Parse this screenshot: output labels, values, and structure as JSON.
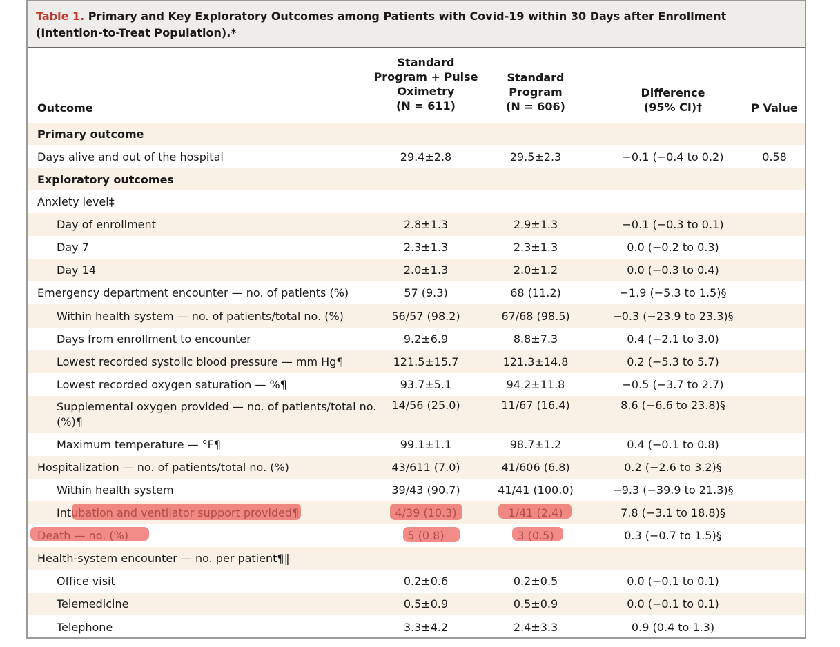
{
  "table": {
    "caption_label": "Table 1.",
    "caption_text": " Primary and Key Exploratory Outcomes among Patients with Covid-19 within 30 Days after Enrollment (Intention-to-Treat Population).*",
    "headers": {
      "outcome": "Outcome",
      "col1": [
        "Standard",
        "Program + Pulse",
        "Oximetry",
        "(N = 611)"
      ],
      "col2": [
        "Standard",
        "Program",
        "(N = 606)"
      ],
      "col3": [
        "Difference",
        "(95% CI)†"
      ],
      "col4": "P Value"
    },
    "rows": [
      {
        "label": "Primary outcome",
        "indent": false,
        "section": true,
        "c1": "",
        "c2": "",
        "c3": "",
        "c4": ""
      },
      {
        "label": "Days alive and out of the hospital",
        "indent": false,
        "section": false,
        "c1": "29.4±2.8",
        "c2": "29.5±2.3",
        "c3": "−0.1 (−0.4 to 0.2)",
        "c4": "0.58"
      },
      {
        "label": "Exploratory outcomes",
        "indent": false,
        "section": true,
        "c1": "",
        "c2": "",
        "c3": "",
        "c4": ""
      },
      {
        "label": "Anxiety level‡",
        "indent": false,
        "section": false,
        "c1": "",
        "c2": "",
        "c3": "",
        "c4": ""
      },
      {
        "label": "Day of enrollment",
        "indent": true,
        "section": false,
        "c1": "2.8±1.3",
        "c2": "2.9±1.3",
        "c3": "−0.1 (−0.3 to 0.1)",
        "c4": ""
      },
      {
        "label": "Day 7",
        "indent": true,
        "section": false,
        "c1": "2.3±1.3",
        "c2": "2.3±1.3",
        "c3": "0.0 (−0.2 to 0.3)",
        "c4": ""
      },
      {
        "label": "Day 14",
        "indent": true,
        "section": false,
        "c1": "2.0±1.3",
        "c2": "2.0±1.2",
        "c3": "0.0 (−0.3 to 0.4)",
        "c4": ""
      },
      {
        "label": "Emergency department encounter — no. of patients (%)",
        "indent": false,
        "section": false,
        "c1": "57 (9.3)",
        "c2": "68 (11.2)",
        "c3": "−1.9 (−5.3 to 1.5)§",
        "c4": ""
      },
      {
        "label": "Within health system — no. of patients/total no. (%)",
        "indent": true,
        "section": false,
        "c1": "56/57 (98.2)",
        "c2": "67/68 (98.5)",
        "c3": "−0.3 (−23.9 to 23.3)§",
        "c4": ""
      },
      {
        "label": "Days from enrollment to encounter",
        "indent": true,
        "section": false,
        "c1": "9.2±6.9",
        "c2": "8.8±7.3",
        "c3": "0.4 (−2.1 to 3.0)",
        "c4": ""
      },
      {
        "label": "Lowest recorded systolic blood pressure — mm Hg¶",
        "indent": true,
        "section": false,
        "c1": "121.5±15.7",
        "c2": "121.3±14.8",
        "c3": "0.2 (−5.3 to 5.7)",
        "c4": ""
      },
      {
        "label": "Lowest recorded oxygen saturation — %¶",
        "indent": true,
        "section": false,
        "c1": "93.7±5.1",
        "c2": "94.2±11.8",
        "c3": "−0.5 (−3.7 to 2.7)",
        "c4": ""
      },
      {
        "label": "Supplemental oxygen provided — no. of patients/total no. (%)¶",
        "indent": true,
        "section": false,
        "c1": "14/56 (25.0)",
        "c2": "11/67 (16.4)",
        "c3": "8.6 (−6.6 to 23.8)§",
        "c4": ""
      },
      {
        "label": "Maximum temperature — °F¶",
        "indent": true,
        "section": false,
        "c1": "99.1±1.1",
        "c2": "98.7±1.2",
        "c3": "0.4 (−0.1 to 0.8)",
        "c4": ""
      },
      {
        "label": "Hospitalization — no. of patients/total no. (%)",
        "indent": false,
        "section": false,
        "c1": "43/611 (7.0)",
        "c2": "41/606 (6.8)",
        "c3": "0.2 (−2.6 to 3.2)§",
        "c4": ""
      },
      {
        "label": "Within health system",
        "indent": true,
        "section": false,
        "c1": "39/43 (90.7)",
        "c2": "41/41 (100.0)",
        "c3": "−9.3 (−39.9 to 21.3)§",
        "c4": ""
      },
      {
        "label": "Intubation and ventilator support provided¶",
        "indent": true,
        "section": false,
        "c1": "4/39 (10.3)",
        "c2": "1/41 (2.4)",
        "c3": "7.8 (−3.1 to 18.8)§",
        "c4": ""
      },
      {
        "label": "Death — no. (%)",
        "indent": false,
        "section": false,
        "c1": "5 (0.8)",
        "c2": "3 (0.5)",
        "c3": "0.3 (−0.7 to 1.5)§",
        "c4": ""
      },
      {
        "label": "Health-system encounter — no. per patient¶‖",
        "indent": false,
        "section": false,
        "c1": "",
        "c2": "",
        "c3": "",
        "c4": ""
      },
      {
        "label": "Office visit",
        "indent": true,
        "section": false,
        "c1": "0.2±0.6",
        "c2": "0.2±0.5",
        "c3": "0.0 (−0.1 to 0.1)",
        "c4": ""
      },
      {
        "label": "Telemedicine",
        "indent": true,
        "section": false,
        "c1": "0.5±0.9",
        "c2": "0.5±0.9",
        "c3": "0.0 (−0.1 to 0.1)",
        "c4": ""
      },
      {
        "label": "Telephone",
        "indent": true,
        "section": false,
        "c1": "3.3±4.2",
        "c2": "2.4±3.3",
        "c3": "0.9 (0.4 to 1.3)",
        "c4": ""
      }
    ],
    "highlight_color": "#ec605c"
  }
}
